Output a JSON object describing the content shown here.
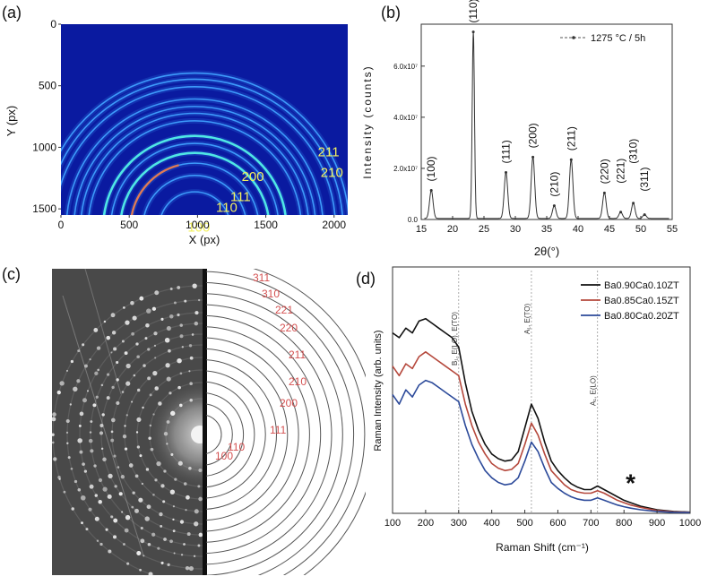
{
  "figure": {
    "panel_labels": [
      "(a)",
      "(b)",
      "(c)",
      "(d)"
    ]
  },
  "chart_data": [
    {
      "panel": "(a)",
      "type": "heatmap",
      "xlabel": "X (px)",
      "ylabel": "Y (px)",
      "xlim": [
        0,
        2100
      ],
      "ylim": [
        0,
        1550
      ],
      "x_ticks": [
        "0",
        "500",
        "1000",
        "1500",
        "2000"
      ],
      "y_ticks": [
        "0",
        "500",
        "1000",
        "1500"
      ],
      "center": [
        980,
        1650
      ],
      "rings": [
        {
          "label": "100",
          "radius": 260
        },
        {
          "label": "110",
          "radius": 380
        },
        {
          "label": "111",
          "radius": 470
        },
        {
          "label": "200",
          "radius": 545
        },
        {
          "label": "210",
          "radius": 615
        },
        {
          "label": "211",
          "radius": 670
        },
        {
          "label": "",
          "radius": 780
        },
        {
          "label": "",
          "radius": 835
        },
        {
          "label": "",
          "radius": 885
        },
        {
          "label": "",
          "radius": 940
        },
        {
          "label": "",
          "radius": 1030
        },
        {
          "label": "",
          "radius": 1085
        },
        {
          "label": "",
          "radius": 1130
        }
      ],
      "colors": {
        "background": "#0a1aa0",
        "ring": "#3fa0ff",
        "bright_ring": "#52f0e8",
        "label": "#f2f060"
      }
    },
    {
      "panel": "(b)",
      "type": "line",
      "xlabel": "2θ(°)",
      "ylabel": "Intensity (counts)",
      "xlim": [
        15,
        55
      ],
      "ylim": [
        0,
        75000000
      ],
      "x_ticks": [
        "15",
        "20",
        "25",
        "30",
        "35",
        "40",
        "45",
        "50",
        "55"
      ],
      "y_ticks": [
        {
          "value": 0,
          "label": "0.0"
        },
        {
          "value": 20000000,
          "label": "2.0x10⁷"
        },
        {
          "value": 40000000,
          "label": "4.0x10⁷"
        },
        {
          "value": 60000000,
          "label": "6.0x10⁷"
        }
      ],
      "series": [
        {
          "name": "1275 °C / 5h"
        }
      ],
      "legend_position": "top-right",
      "baseline": 400000,
      "peaks": [
        {
          "label": "(100)",
          "x": 16.6,
          "y": 11000000
        },
        {
          "label": "(110)",
          "x": 23.3,
          "y": 73000000
        },
        {
          "label": "(111)",
          "x": 28.5,
          "y": 18000000
        },
        {
          "label": "(200)",
          "x": 32.8,
          "y": 24000000
        },
        {
          "label": "(210)",
          "x": 36.2,
          "y": 5000000
        },
        {
          "label": "(211)",
          "x": 38.9,
          "y": 23000000
        },
        {
          "label": "(220)",
          "x": 44.2,
          "y": 10000000
        },
        {
          "label": "(221)",
          "x": 46.8,
          "y": 2500000
        },
        {
          "label": "(310)",
          "x": 48.8,
          "y": 6000000
        },
        {
          "label": "(311)",
          "x": 50.6,
          "y": 1500000
        }
      ]
    },
    {
      "panel": "(c)",
      "type": "diagram",
      "ring_labels": [
        "100",
        "110",
        "111",
        "200",
        "210",
        "211",
        "220",
        "221",
        "310",
        "311"
      ],
      "colors": {
        "ring": "#555555",
        "label": "#d45050"
      }
    },
    {
      "panel": "(d)",
      "type": "line",
      "xlabel": "Raman Shift (cm⁻¹)",
      "ylabel": "Raman Intensity (arb. units)",
      "xlim": [
        100,
        1000
      ],
      "x_ticks": [
        "100",
        "200",
        "300",
        "400",
        "500",
        "600",
        "700",
        "800",
        "900",
        "1000"
      ],
      "legend_position": "top-right",
      "mode_annotations": [
        "B₁, E(LO), E(TO)",
        "A₁, E(TO)",
        "A₁, E(LO)"
      ],
      "mode_positions": [
        300,
        520,
        720
      ],
      "asterisk": {
        "text": "*",
        "x": 820
      },
      "series": [
        {
          "name": "Ba0.90Ca0.10ZT",
          "color": "#111111",
          "x": [
            100,
            120,
            140,
            160,
            180,
            200,
            220,
            240,
            260,
            280,
            300,
            320,
            340,
            360,
            380,
            400,
            420,
            440,
            460,
            480,
            500,
            520,
            540,
            560,
            580,
            600,
            620,
            640,
            660,
            680,
            700,
            720,
            740,
            760,
            780,
            800,
            820,
            850,
            900,
            950,
            1000
          ],
          "values": [
            0.76,
            0.74,
            0.78,
            0.76,
            0.81,
            0.82,
            0.8,
            0.78,
            0.76,
            0.74,
            0.7,
            0.55,
            0.43,
            0.35,
            0.29,
            0.25,
            0.23,
            0.22,
            0.225,
            0.26,
            0.36,
            0.46,
            0.4,
            0.3,
            0.22,
            0.18,
            0.15,
            0.125,
            0.11,
            0.1,
            0.1,
            0.115,
            0.1,
            0.085,
            0.07,
            0.055,
            0.045,
            0.03,
            0.015,
            0.008,
            0.005
          ]
        },
        {
          "name": "Ba0.85Ca0.15ZT",
          "color": "#b5483c",
          "x": [
            100,
            120,
            140,
            160,
            180,
            200,
            220,
            240,
            260,
            280,
            300,
            320,
            340,
            360,
            380,
            400,
            420,
            440,
            460,
            480,
            500,
            520,
            540,
            560,
            580,
            600,
            620,
            640,
            660,
            680,
            700,
            720,
            740,
            760,
            780,
            800,
            820,
            850,
            900,
            950,
            1000
          ],
          "values": [
            0.62,
            0.58,
            0.63,
            0.61,
            0.66,
            0.68,
            0.66,
            0.64,
            0.62,
            0.6,
            0.58,
            0.46,
            0.37,
            0.3,
            0.25,
            0.21,
            0.19,
            0.18,
            0.185,
            0.21,
            0.29,
            0.38,
            0.33,
            0.25,
            0.18,
            0.15,
            0.12,
            0.1,
            0.09,
            0.085,
            0.085,
            0.095,
            0.085,
            0.07,
            0.055,
            0.045,
            0.035,
            0.025,
            0.012,
            0.006,
            0.004
          ]
        },
        {
          "name": "Ba0.80Ca0.20ZT",
          "color": "#2c4a9a",
          "x": [
            100,
            120,
            140,
            160,
            180,
            200,
            220,
            240,
            260,
            280,
            300,
            320,
            340,
            360,
            380,
            400,
            420,
            440,
            460,
            480,
            500,
            520,
            540,
            560,
            580,
            600,
            620,
            640,
            660,
            680,
            700,
            720,
            740,
            760,
            780,
            800,
            820,
            850,
            900,
            950,
            1000
          ],
          "values": [
            0.5,
            0.46,
            0.52,
            0.49,
            0.54,
            0.56,
            0.55,
            0.53,
            0.51,
            0.49,
            0.47,
            0.37,
            0.29,
            0.23,
            0.18,
            0.15,
            0.13,
            0.12,
            0.125,
            0.15,
            0.22,
            0.3,
            0.26,
            0.19,
            0.13,
            0.105,
            0.085,
            0.07,
            0.06,
            0.055,
            0.055,
            0.065,
            0.055,
            0.045,
            0.035,
            0.028,
            0.022,
            0.015,
            0.008,
            0.004,
            0.003
          ]
        }
      ]
    }
  ]
}
